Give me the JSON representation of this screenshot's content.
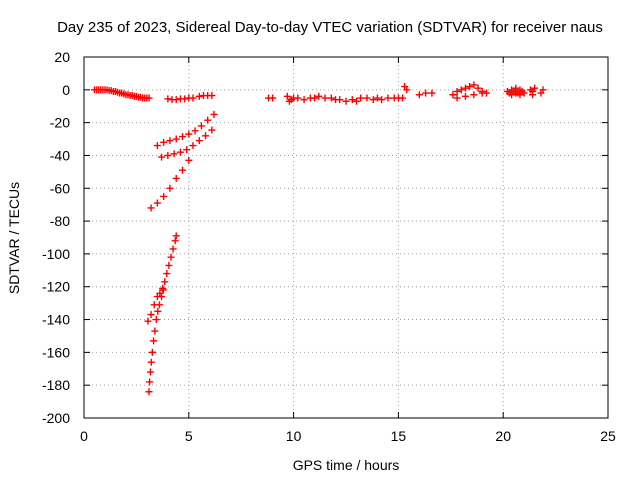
{
  "chart_data": {
    "type": "scatter",
    "title": "Day 235 of 2023, Sidereal Day-to-day VTEC variation (SDTVAR) for receiver naus",
    "xlabel": "GPS time / hours",
    "ylabel": "SDTVAR / TECUs",
    "xlim": [
      0,
      25
    ],
    "ylim": [
      -200,
      20
    ],
    "xticks": [
      0,
      5,
      10,
      15,
      20,
      25
    ],
    "yticks": [
      20,
      0,
      -20,
      -40,
      -60,
      -80,
      -100,
      -120,
      -140,
      -160,
      -180,
      -200
    ],
    "grid": true,
    "legend": "none",
    "marker": "plus",
    "color": "#ff0000",
    "series": [
      {
        "x": [
          0.5,
          0.6,
          0.7,
          0.8,
          0.9,
          1.0,
          1.1,
          1.2,
          1.3,
          1.4,
          1.5,
          1.6,
          1.7,
          1.8,
          1.9,
          2.0,
          2.1,
          2.2,
          2.3,
          2.4,
          2.5,
          2.6,
          2.7,
          2.8,
          2.9,
          3.0,
          3.1
        ],
        "y": [
          0,
          0,
          0,
          0,
          0,
          0,
          0,
          -0.5,
          -0.5,
          -1,
          -1,
          -1.5,
          -2,
          -2,
          -2.5,
          -3,
          -3,
          -3.5,
          -3.5,
          -4,
          -4,
          -4.5,
          -4.5,
          -5,
          -5,
          -5,
          -5
        ]
      },
      {
        "x": [
          4.0,
          4.2,
          4.4,
          4.6,
          4.8,
          5.0,
          5.2,
          5.5,
          5.7,
          5.9,
          6.1
        ],
        "y": [
          -5.5,
          -6,
          -6,
          -5.5,
          -5.5,
          -5,
          -5,
          -4,
          -3.5,
          -3.5,
          -3.5
        ]
      },
      {
        "x": [
          3.5,
          3.8,
          4.1,
          4.4,
          4.7,
          5.0,
          5.3,
          5.6,
          5.9,
          6.2
        ],
        "y": [
          -34,
          -32,
          -31,
          -30,
          -28.5,
          -27,
          -25,
          -22,
          -18.5,
          -15
        ]
      },
      {
        "x": [
          3.7,
          4.0,
          4.3,
          4.6,
          4.9,
          5.2,
          5.5,
          5.8,
          6.1
        ],
        "y": [
          -41,
          -40,
          -39,
          -38,
          -36.5,
          -34,
          -31,
          -28,
          -24.5
        ]
      },
      {
        "x": [
          3.2,
          3.5,
          3.8,
          4.1,
          4.4,
          4.7,
          5.0
        ],
        "y": [
          -72,
          -69,
          -65,
          -60,
          -54,
          -49,
          -43
        ]
      },
      {
        "x": [
          3.05,
          3.2,
          3.35,
          3.5,
          3.62,
          3.75,
          3.85,
          3.95,
          4.05,
          4.15,
          4.25,
          4.35,
          4.4
        ],
        "y": [
          -141,
          -137,
          -131,
          -126,
          -124,
          -121,
          -117,
          -112,
          -107,
          -102,
          -97,
          -92,
          -89
        ]
      },
      {
        "x": [
          3.1,
          3.13,
          3.17,
          3.21,
          3.26,
          3.32,
          3.38,
          3.45,
          3.52,
          3.6,
          3.7,
          3.78
        ],
        "y": [
          -184,
          -178,
          -172,
          -166,
          -160,
          -153,
          -147,
          -140,
          -135,
          -131,
          -126,
          -122
        ]
      },
      {
        "x": [
          8.8,
          9.0,
          9.7,
          9.8,
          9.9,
          10.0,
          10.2,
          10.5,
          10.8,
          11.0,
          11.2,
          11.5,
          11.8,
          12.0,
          12.2,
          12.5,
          12.8,
          13.0,
          13.2,
          13.5,
          13.8,
          14.0,
          14.2,
          14.5,
          14.8,
          15.0,
          15.2
        ],
        "y": [
          -5,
          -5,
          -4,
          -7,
          -6,
          -5,
          -5,
          -6,
          -5,
          -5,
          -4,
          -5,
          -5,
          -6,
          -6,
          -7,
          -6,
          -7,
          -5,
          -5,
          -6,
          -5,
          -6,
          -5,
          -5,
          -5,
          -5
        ]
      },
      {
        "x": [
          15.3,
          15.4,
          16.0,
          16.3,
          16.6,
          17.6,
          17.8,
          18.0,
          18.2,
          18.4,
          18.6,
          18.8,
          19.0,
          19.2,
          17.8,
          18.2,
          18.6,
          19.0
        ],
        "y": [
          2,
          0,
          -3,
          -2,
          -2,
          -3,
          -1,
          0,
          1,
          2,
          3,
          1,
          -1,
          -2,
          -5,
          -4,
          -3,
          -2
        ]
      },
      {
        "x": [
          20.2,
          20.3,
          20.4,
          20.5,
          20.6,
          20.7,
          20.8,
          20.9,
          21.0,
          21.3,
          21.4,
          21.5,
          21.8,
          21.9,
          20.4,
          20.6,
          20.8,
          21.4
        ],
        "y": [
          -1,
          -2,
          0,
          -1,
          1,
          -2,
          0,
          -1,
          -2,
          0,
          -1,
          1,
          -2,
          0,
          -3,
          -2,
          -3,
          -3
        ]
      }
    ]
  }
}
